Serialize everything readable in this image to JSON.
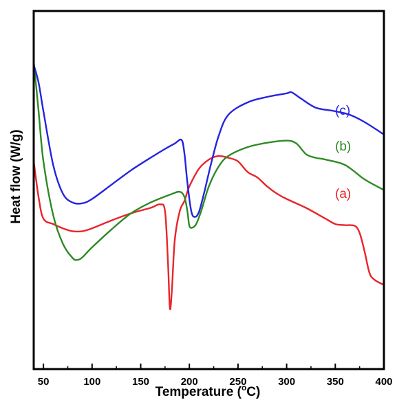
{
  "chart_data": {
    "type": "line",
    "title": "",
    "xlabel": "Temperature (°C)",
    "xlabel_main": "Temperature (",
    "xlabel_sup": "o",
    "xlabel_end": "C)",
    "ylabel": "Heat flow (W/g)",
    "xlim": [
      40,
      400
    ],
    "ylim": [
      0,
      100
    ],
    "x_ticks": [
      50,
      100,
      150,
      200,
      250,
      300,
      350,
      400
    ],
    "y_ticks_shown": false,
    "grid": false,
    "legend": "none",
    "series": [
      {
        "label": "(a)",
        "color": "#e8252a",
        "points": [
          [
            40,
            58
          ],
          [
            45,
            48
          ],
          [
            50,
            42
          ],
          [
            60,
            40.5
          ],
          [
            70,
            39.3
          ],
          [
            80,
            38.5
          ],
          [
            90,
            38.5
          ],
          [
            100,
            39.3
          ],
          [
            120,
            41.5
          ],
          [
            140,
            43.5
          ],
          [
            160,
            45
          ],
          [
            170,
            46
          ],
          [
            175,
            44
          ],
          [
            178,
            30
          ],
          [
            180,
            17
          ],
          [
            182,
            22
          ],
          [
            185,
            36
          ],
          [
            190,
            44
          ],
          [
            195,
            47
          ],
          [
            200,
            51
          ],
          [
            210,
            56
          ],
          [
            220,
            58.5
          ],
          [
            230,
            59.5
          ],
          [
            240,
            59
          ],
          [
            250,
            58
          ],
          [
            260,
            55
          ],
          [
            270,
            53.5
          ],
          [
            280,
            51
          ],
          [
            290,
            49
          ],
          [
            300,
            47.5
          ],
          [
            320,
            45
          ],
          [
            340,
            42
          ],
          [
            350,
            40.5
          ],
          [
            360,
            40.2
          ],
          [
            370,
            40
          ],
          [
            375,
            38
          ],
          [
            380,
            33
          ],
          [
            385,
            27
          ],
          [
            390,
            25
          ],
          [
            400,
            23.5
          ]
        ]
      },
      {
        "label": "(b)",
        "color": "#2f8a24",
        "points": [
          [
            40,
            86
          ],
          [
            45,
            72
          ],
          [
            50,
            58
          ],
          [
            60,
            43
          ],
          [
            70,
            35
          ],
          [
            80,
            31
          ],
          [
            85,
            30.5
          ],
          [
            90,
            31.2
          ],
          [
            100,
            34
          ],
          [
            120,
            39
          ],
          [
            140,
            43.5
          ],
          [
            160,
            46.5
          ],
          [
            180,
            48.7
          ],
          [
            190,
            49.5
          ],
          [
            195,
            48
          ],
          [
            198,
            44
          ],
          [
            200,
            40
          ],
          [
            203,
            39.5
          ],
          [
            207,
            40.5
          ],
          [
            212,
            44
          ],
          [
            220,
            51
          ],
          [
            230,
            56.5
          ],
          [
            240,
            59.5
          ],
          [
            260,
            62
          ],
          [
            280,
            63.2
          ],
          [
            300,
            63.8
          ],
          [
            310,
            63
          ],
          [
            320,
            60
          ],
          [
            330,
            59
          ],
          [
            340,
            58.5
          ],
          [
            360,
            57
          ],
          [
            380,
            53
          ],
          [
            400,
            50
          ]
        ]
      },
      {
        "label": "(c)",
        "color": "#2424e0",
        "points": [
          [
            40,
            85
          ],
          [
            45,
            80
          ],
          [
            50,
            72
          ],
          [
            60,
            57
          ],
          [
            70,
            49
          ],
          [
            80,
            46.5
          ],
          [
            90,
            46.3
          ],
          [
            100,
            47.5
          ],
          [
            120,
            51.5
          ],
          [
            140,
            55.5
          ],
          [
            160,
            59
          ],
          [
            175,
            61.5
          ],
          [
            185,
            63
          ],
          [
            192,
            64
          ],
          [
            195,
            60
          ],
          [
            198,
            52
          ],
          [
            202,
            44
          ],
          [
            206,
            42.5
          ],
          [
            210,
            44
          ],
          [
            215,
            49
          ],
          [
            222,
            57
          ],
          [
            230,
            65
          ],
          [
            240,
            71
          ],
          [
            260,
            74.5
          ],
          [
            280,
            76
          ],
          [
            300,
            77
          ],
          [
            305,
            77.3
          ],
          [
            315,
            75.5
          ],
          [
            330,
            73
          ],
          [
            350,
            72
          ],
          [
            365,
            71
          ],
          [
            380,
            69
          ],
          [
            400,
            65.5
          ]
        ]
      }
    ]
  }
}
